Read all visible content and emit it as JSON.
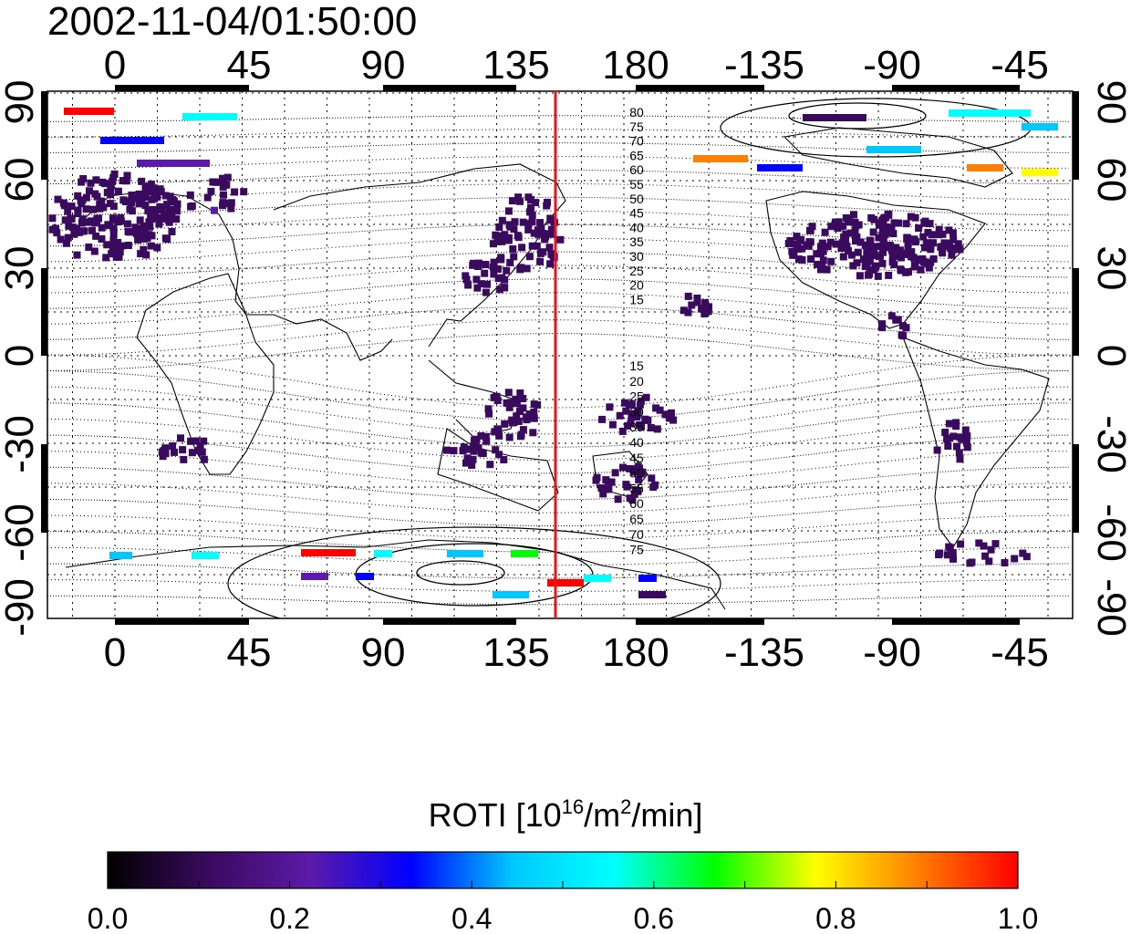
{
  "title": "2002-11-04/01:50:00",
  "map": {
    "top_ticks": [
      "0",
      "45",
      "90",
      "135",
      "180",
      "-135",
      "-90",
      "-45"
    ],
    "bottom_ticks": [
      "0",
      "45",
      "90",
      "135",
      "180",
      "-135",
      "-90",
      "-45"
    ],
    "left_ticks": [
      "90",
      "60",
      "30",
      "0",
      "-30",
      "-60",
      "-90"
    ],
    "right_ticks": [
      "90",
      "60",
      "30",
      "0",
      "-30",
      "-60",
      "-90"
    ],
    "north_contour_labels": [
      "80",
      "75",
      "70",
      "65",
      "60",
      "55",
      "50",
      "45",
      "40",
      "35",
      "30",
      "25",
      "20",
      "15"
    ],
    "south_contour_labels": [
      "15",
      "20",
      "25",
      "30",
      "35",
      "40",
      "45",
      "50",
      "55",
      "60",
      "65",
      "70",
      "75"
    ],
    "marker_longitude": 150,
    "marker_color": "#e8141e"
  },
  "colorbar": {
    "label_text": "ROTI  [10",
    "label_exp1": "16",
    "label_mid": "/m",
    "label_exp2": "2",
    "label_end": "/min]",
    "ticks": [
      "0.0",
      "0.2",
      "0.4",
      "0.6",
      "0.8",
      "1.0"
    ],
    "range": [
      0.0,
      1.0
    ],
    "stops": [
      "#000000",
      "#3a0a5e",
      "#5c1aa8",
      "#0000ff",
      "#00c8ff",
      "#00ffff",
      "#00ff00",
      "#ffff00",
      "#ff8000",
      "#ff0000"
    ]
  }
}
